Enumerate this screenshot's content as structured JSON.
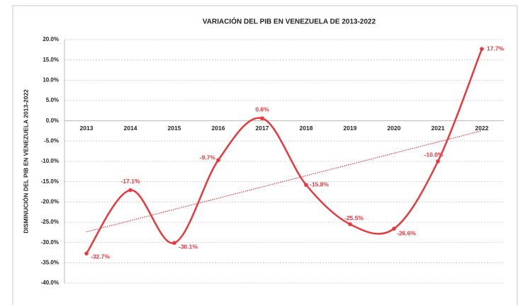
{
  "chart_data": {
    "type": "line",
    "title": "VARIACIÓN DEL PIB EN VENEZUELA DE 2013-2022",
    "y_label": "DISMINUCIÓN DEL PIB EN VENEZUELA 2013-2022",
    "categories": [
      "2013",
      "2014",
      "2015",
      "2016",
      "2017",
      "2018",
      "2019",
      "2020",
      "2021",
      "2022"
    ],
    "series": [
      {
        "name": "Variación del PIB",
        "color": "#e8383d",
        "values": [
          -32.7,
          -17.1,
          -30.1,
          -9.7,
          0.6,
          -15.8,
          -25.5,
          -26.6,
          -10.0,
          17.7
        ],
        "value_labels": [
          "-32.7%",
          "-17.1%",
          "-30.1%",
          "-9.7%",
          "0.6%",
          "-15.8%",
          "-25.5%",
          "-26.6%",
          "-10.0%",
          "17.7%"
        ]
      }
    ],
    "ylim": [
      -40,
      20
    ],
    "yticks": [
      {
        "value": -40,
        "label": "-40.0%"
      },
      {
        "value": -35,
        "label": "-35.0%"
      },
      {
        "value": -30,
        "label": "-30.0%"
      },
      {
        "value": -25,
        "label": "-25.0%"
      },
      {
        "value": -20,
        "label": "-20.0%"
      },
      {
        "value": -15,
        "label": "-15.0%"
      },
      {
        "value": -10,
        "label": "-10.0%"
      },
      {
        "value": -5,
        "label": "-5.0%"
      },
      {
        "value": 0,
        "label": "0.0%"
      },
      {
        "value": 5,
        "label": "5.0%"
      },
      {
        "value": 10,
        "label": "10.0%"
      },
      {
        "value": 15,
        "label": "15.0%"
      },
      {
        "value": 20,
        "label": "20.0%"
      }
    ],
    "grid": true,
    "smooth": true,
    "trendline": true
  }
}
